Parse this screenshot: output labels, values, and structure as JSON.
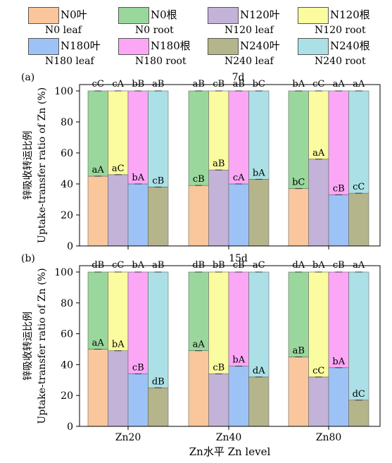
{
  "legend": [
    {
      "zh": "N0叶",
      "en": "N0 leaf",
      "color": "#f9c79b"
    },
    {
      "zh": "N0根",
      "en": "N0 root",
      "color": "#9ad79c"
    },
    {
      "zh": "N120叶",
      "en": "N120 leaf",
      "color": "#c4b3d8"
    },
    {
      "zh": "N120根",
      "en": "N120 root",
      "color": "#fbfb9f"
    },
    {
      "zh": "N180叶",
      "en": "N180 leaf",
      "color": "#9dc3f6"
    },
    {
      "zh": "N180根",
      "en": "N180 root",
      "color": "#fba7f6"
    },
    {
      "zh": "N240叶",
      "en": "N240 leaf",
      "color": "#b5b58c"
    },
    {
      "zh": "N240根",
      "en": "N240 root",
      "color": "#abe1e6"
    }
  ],
  "chart_data": [
    {
      "type": "bar",
      "panel_label": "(a)",
      "title": "7d",
      "categories": [
        "Zn20",
        "Zn40",
        "Zn80"
      ],
      "stacked": true,
      "ylim": [
        0,
        100
      ],
      "yticks": [
        0,
        20,
        40,
        60,
        80,
        100
      ],
      "ylabel_zh": "锌吸收转运比例",
      "ylabel_en": "Uptake-transfer ratio of Zn (%)",
      "series": [
        {
          "name": "N0",
          "leaf": [
            45,
            39,
            37
          ],
          "root": [
            55,
            61,
            63
          ],
          "leaf_labels": [
            "aA",
            "cB",
            "bC"
          ],
          "top_labels": [
            "cC",
            "aB",
            "bA"
          ]
        },
        {
          "name": "N120",
          "leaf": [
            46,
            49,
            56
          ],
          "root": [
            54,
            51,
            44
          ],
          "leaf_labels": [
            "aC",
            "aB",
            "aA"
          ],
          "top_labels": [
            "cA",
            "cB",
            "cC"
          ]
        },
        {
          "name": "N180",
          "leaf": [
            40,
            40,
            33
          ],
          "root": [
            60,
            60,
            67
          ],
          "leaf_labels": [
            "bA",
            "cA",
            "cB"
          ],
          "top_labels": [
            "bB",
            "aB",
            "aA"
          ]
        },
        {
          "name": "N240",
          "leaf": [
            38,
            43,
            34
          ],
          "root": [
            62,
            57,
            66
          ],
          "leaf_labels": [
            "cB",
            "bA",
            "cC"
          ],
          "top_labels": [
            "aB",
            "bC",
            "aA"
          ]
        }
      ]
    },
    {
      "type": "bar",
      "panel_label": "(b)",
      "title": "15d",
      "categories": [
        "Zn20",
        "Zn40",
        "Zn80"
      ],
      "stacked": true,
      "ylim": [
        0,
        100
      ],
      "yticks": [
        0,
        20,
        40,
        60,
        80,
        100
      ],
      "ylabel_zh": "锌吸收转运比例",
      "ylabel_en": "Uptake-transfer ratio of Zn (%)",
      "xlabel": "Zn水平 Zn level",
      "series": [
        {
          "name": "N0",
          "leaf": [
            50,
            49,
            45
          ],
          "root": [
            50,
            51,
            55
          ],
          "leaf_labels": [
            "aA",
            "aA",
            "aB"
          ],
          "top_labels": [
            "dB",
            "dB",
            "dA"
          ]
        },
        {
          "name": "N120",
          "leaf": [
            49,
            34,
            32
          ],
          "root": [
            51,
            66,
            68
          ],
          "leaf_labels": [
            "bA",
            "cB",
            "cC"
          ],
          "top_labels": [
            "cC",
            "bB",
            "bA"
          ]
        },
        {
          "name": "N180",
          "leaf": [
            34,
            39,
            38
          ],
          "root": [
            66,
            61,
            62
          ],
          "leaf_labels": [
            "cB",
            "bA",
            "bA"
          ],
          "top_labels": [
            "bA",
            "cB",
            "cB"
          ]
        },
        {
          "name": "N240",
          "leaf": [
            25,
            32,
            17
          ],
          "root": [
            75,
            68,
            83
          ],
          "leaf_labels": [
            "dB",
            "dA",
            "dC"
          ],
          "top_labels": [
            "aB",
            "aC",
            "aA"
          ]
        }
      ]
    }
  ]
}
